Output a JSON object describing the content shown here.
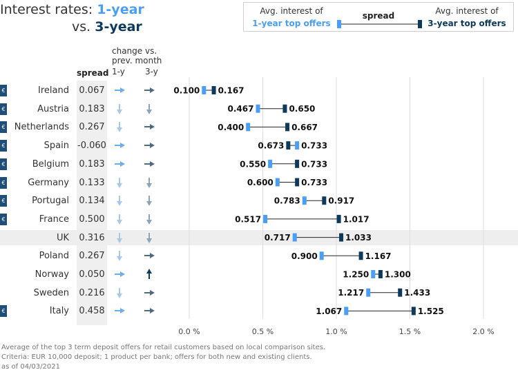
{
  "title": {
    "prefix": "Interest rates: ",
    "y1": "1-year",
    "vs": "vs. ",
    "y3": "3-year"
  },
  "legend": {
    "left_line1": "Avg. interest of",
    "left_line2": "1-year top offers",
    "mid": "spread",
    "right_line1": "Avg. interest of",
    "right_line2": "3-year top offers"
  },
  "headers": {
    "spread": "spread",
    "change_line1": "change vs.",
    "change_line2": "prev. month",
    "col_1y": "1-y",
    "col_3y": "3-y"
  },
  "colors": {
    "one_year": "#4a9ff5",
    "three_year": "#0d3a5c",
    "arrow_1y": "#6aaef0",
    "arrow_3y": "#4f6b82",
    "arrow_light": "#a9c8e8"
  },
  "chart_data": {
    "type": "dumbbell",
    "xlim": [
      0,
      2.0
    ],
    "x_ticks": [
      "0.0 %",
      "0.5 %",
      "1.0 %",
      "1.5 %",
      "2.0 %"
    ],
    "x_tick_values": [
      0,
      0.5,
      1.0,
      1.5,
      2.0
    ],
    "grid": true,
    "series": [
      {
        "name": "1-year top offers",
        "key": "y1"
      },
      {
        "name": "3-year top offers",
        "key": "y3"
      }
    ],
    "rows": [
      {
        "country": "Ireland",
        "euro": true,
        "spread": "0.067",
        "change_1y": "right",
        "change_3y": "right",
        "y1": 0.1,
        "y3": 0.167,
        "y1_label": "0.100",
        "y3_label": "0.167"
      },
      {
        "country": "Austria",
        "euro": true,
        "spread": "0.183",
        "change_1y": "down",
        "change_3y": "down",
        "y1": 0.467,
        "y3": 0.65,
        "y1_label": "0.467",
        "y3_label": "0.650"
      },
      {
        "country": "Netherlands",
        "euro": true,
        "spread": "0.267",
        "change_1y": "down",
        "change_3y": "right",
        "y1": 0.4,
        "y3": 0.667,
        "y1_label": "0.400",
        "y3_label": "0.667"
      },
      {
        "country": "Spain",
        "euro": true,
        "spread": "-0.060",
        "change_1y": "right",
        "change_3y": "right",
        "y1": 0.733,
        "y3": 0.673,
        "y1_label": "0.733",
        "y3_label": "0.673"
      },
      {
        "country": "Belgium",
        "euro": true,
        "spread": "0.183",
        "change_1y": "right",
        "change_3y": "right",
        "y1": 0.55,
        "y3": 0.733,
        "y1_label": "0.550",
        "y3_label": "0.733"
      },
      {
        "country": "Germany",
        "euro": true,
        "spread": "0.133",
        "change_1y": "down",
        "change_3y": "down",
        "y1": 0.6,
        "y3": 0.733,
        "y1_label": "0.600",
        "y3_label": "0.733"
      },
      {
        "country": "Portugal",
        "euro": true,
        "spread": "0.134",
        "change_1y": "down",
        "change_3y": "down",
        "y1": 0.783,
        "y3": 0.917,
        "y1_label": "0.783",
        "y3_label": "0.917"
      },
      {
        "country": "France",
        "euro": true,
        "spread": "0.500",
        "change_1y": "down",
        "change_3y": "down",
        "y1": 0.517,
        "y3": 1.017,
        "y1_label": "0.517",
        "y3_label": "1.017"
      },
      {
        "country": "UK",
        "euro": false,
        "spread": "0.316",
        "change_1y": "down",
        "change_3y": "down",
        "y1": 0.717,
        "y3": 1.033,
        "y1_label": "0.717",
        "y3_label": "1.033",
        "highlight": true
      },
      {
        "country": "Poland",
        "euro": false,
        "spread": "0.267",
        "change_1y": "down",
        "change_3y": "right",
        "y1": 0.9,
        "y3": 1.167,
        "y1_label": "0.900",
        "y3_label": "1.167"
      },
      {
        "country": "Norway",
        "euro": false,
        "spread": "0.050",
        "change_1y": "right",
        "change_3y": "up",
        "y1": 1.25,
        "y3": 1.3,
        "y1_label": "1.250",
        "y3_label": "1.300"
      },
      {
        "country": "Sweden",
        "euro": false,
        "spread": "0.216",
        "change_1y": "down",
        "change_3y": "right",
        "y1": 1.217,
        "y3": 1.433,
        "y1_label": "1.217",
        "y3_label": "1.433"
      },
      {
        "country": "Italy",
        "euro": true,
        "spread": "0.458",
        "change_1y": "right",
        "change_3y": "right",
        "y1": 1.067,
        "y3": 1.525,
        "y1_label": "1.067",
        "y3_label": "1.525"
      }
    ]
  },
  "euro_symbol": "€",
  "footnotes": [
    "Average of the top 3 term deposit offers for retail customers based on local comparison sites.",
    "Criteria: EUR 10,000 deposit; 1 product per bank; offers for both new and existing clients.",
    "as of 04/03/2021"
  ]
}
